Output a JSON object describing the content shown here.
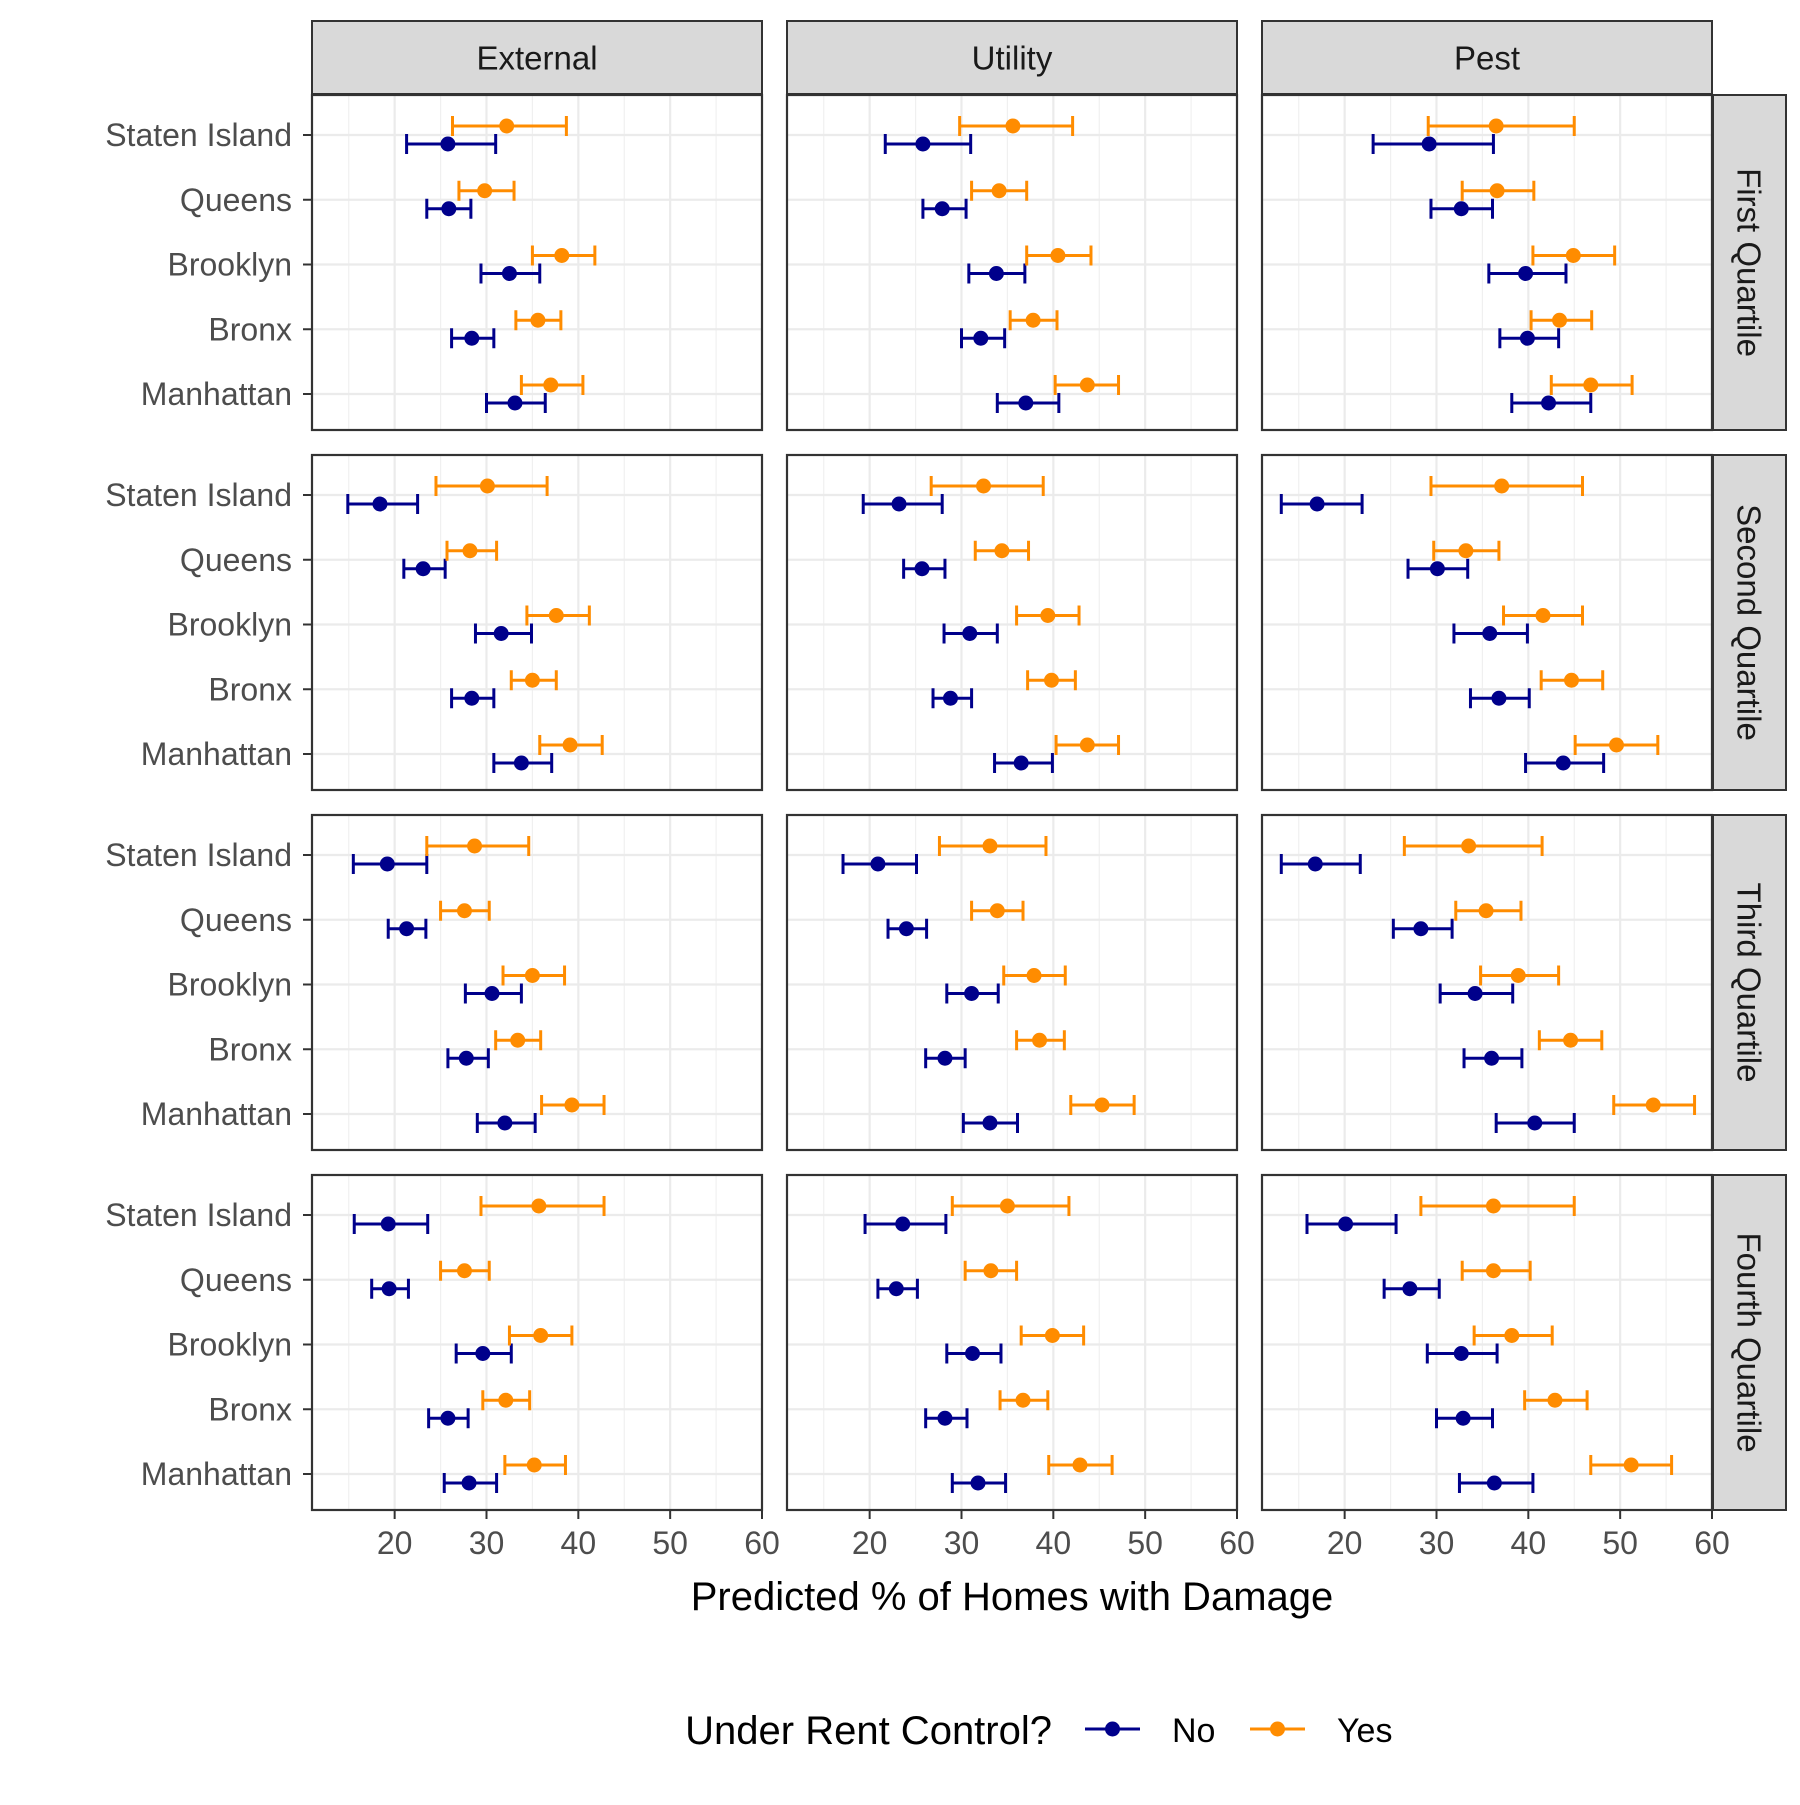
{
  "chart_data": {
    "type": "scatter",
    "subtype": "point-range facet grid",
    "xlabel": "Predicted % of Homes with Damage",
    "x_ticks": [
      20,
      30,
      40,
      50,
      60
    ],
    "xlim": [
      11,
      60
    ],
    "categories": [
      "Staten Island",
      "Queens",
      "Brooklyn",
      "Bronx",
      "Manhattan"
    ],
    "columns": [
      "External",
      "Utility",
      "Pest"
    ],
    "rows": [
      "First Quartile",
      "Second Quartile",
      "Third Quartile",
      "Fourth Quartile"
    ],
    "grid": true,
    "legend": {
      "title": "Under Rent Control?",
      "placement": "bottom",
      "entries": [
        {
          "label": "No",
          "color": "#00008B"
        },
        {
          "label": "Yes",
          "color": "#FF8C00"
        }
      ]
    },
    "series": [
      {
        "name": "No",
        "color": "#00008B",
        "panels": [
          [
            [
              [
                25.8,
                21.3,
                31.0
              ],
              [
                25.9,
                23.5,
                28.3
              ],
              [
                32.5,
                29.4,
                35.8
              ],
              [
                28.4,
                26.2,
                30.8
              ],
              [
                33.1,
                30.0,
                36.4
              ]
            ],
            [
              [
                25.8,
                21.7,
                31.0
              ],
              [
                27.9,
                25.8,
                30.5
              ],
              [
                33.8,
                30.8,
                36.9
              ],
              [
                32.1,
                30.0,
                34.7
              ],
              [
                37.0,
                33.9,
                40.6
              ]
            ],
            [
              [
                29.2,
                23.1,
                36.2
              ],
              [
                32.7,
                29.4,
                36.1
              ],
              [
                39.7,
                35.7,
                44.1
              ],
              [
                39.9,
                36.9,
                43.3
              ],
              [
                42.2,
                38.2,
                46.8
              ]
            ]
          ],
          [
            [
              [
                18.4,
                14.9,
                22.5
              ],
              [
                23.1,
                21.0,
                25.5
              ],
              [
                31.6,
                28.8,
                34.9
              ],
              [
                28.4,
                26.2,
                30.8
              ],
              [
                33.8,
                30.8,
                37.1
              ]
            ],
            [
              [
                23.2,
                19.3,
                27.9
              ],
              [
                25.7,
                23.7,
                28.2
              ],
              [
                30.9,
                28.1,
                33.9
              ],
              [
                28.8,
                26.9,
                31.1
              ],
              [
                36.5,
                33.6,
                39.9
              ]
            ],
            [
              [
                17.0,
                13.1,
                21.9
              ],
              [
                30.1,
                26.9,
                33.4
              ],
              [
                35.8,
                31.9,
                39.9
              ],
              [
                36.8,
                33.7,
                40.1
              ],
              [
                43.8,
                39.7,
                48.2
              ]
            ]
          ],
          [
            [
              [
                19.2,
                15.5,
                23.5
              ],
              [
                21.3,
                19.3,
                23.4
              ],
              [
                30.6,
                27.7,
                33.8
              ],
              [
                27.8,
                25.8,
                30.2
              ],
              [
                32.0,
                29.0,
                35.3
              ]
            ],
            [
              [
                20.9,
                17.1,
                25.1
              ],
              [
                24.0,
                22.0,
                26.2
              ],
              [
                31.1,
                28.4,
                34.0
              ],
              [
                28.2,
                26.1,
                30.4
              ],
              [
                33.1,
                30.2,
                36.1
              ]
            ],
            [
              [
                16.8,
                13.1,
                21.7
              ],
              [
                28.3,
                25.3,
                31.7
              ],
              [
                34.2,
                30.4,
                38.3
              ],
              [
                36.0,
                33.0,
                39.3
              ],
              [
                40.7,
                36.5,
                45.0
              ]
            ]
          ],
          [
            [
              [
                19.3,
                15.6,
                23.6
              ],
              [
                19.4,
                17.5,
                21.5
              ],
              [
                29.6,
                26.7,
                32.7
              ],
              [
                25.8,
                23.7,
                28.0
              ],
              [
                28.1,
                25.4,
                31.1
              ]
            ],
            [
              [
                23.6,
                19.5,
                28.3
              ],
              [
                22.9,
                20.9,
                25.2
              ],
              [
                31.2,
                28.4,
                34.3
              ],
              [
                28.2,
                26.1,
                30.6
              ],
              [
                31.8,
                29.0,
                34.8
              ]
            ],
            [
              [
                20.1,
                15.9,
                25.6
              ],
              [
                27.1,
                24.3,
                30.3
              ],
              [
                32.7,
                29.0,
                36.6
              ],
              [
                32.9,
                30.0,
                36.1
              ],
              [
                36.3,
                32.5,
                40.5
              ]
            ]
          ]
        ]
      },
      {
        "name": "Yes",
        "color": "#FF8C00",
        "panels": [
          [
            [
              [
                32.2,
                26.3,
                38.7
              ],
              [
                29.8,
                27.0,
                33.0
              ],
              [
                38.2,
                35.0,
                41.8
              ],
              [
                35.6,
                33.2,
                38.1
              ],
              [
                37.0,
                33.8,
                40.5
              ]
            ],
            [
              [
                35.6,
                29.8,
                42.1
              ],
              [
                34.1,
                31.1,
                37.1
              ],
              [
                40.5,
                37.1,
                44.1
              ],
              [
                37.8,
                35.3,
                40.4
              ],
              [
                43.7,
                40.2,
                47.1
              ]
            ],
            [
              [
                36.5,
                29.1,
                45.0
              ],
              [
                36.6,
                32.8,
                40.6
              ],
              [
                44.9,
                40.5,
                49.4
              ],
              [
                43.4,
                40.3,
                46.9
              ],
              [
                46.8,
                42.5,
                51.3
              ]
            ]
          ],
          [
            [
              [
                30.1,
                24.5,
                36.6
              ],
              [
                28.2,
                25.7,
                31.1
              ],
              [
                37.6,
                34.4,
                41.2
              ],
              [
                35.0,
                32.7,
                37.6
              ],
              [
                39.1,
                35.8,
                42.6
              ]
            ],
            [
              [
                32.4,
                26.7,
                38.9
              ],
              [
                34.4,
                31.5,
                37.3
              ],
              [
                39.4,
                36.0,
                42.8
              ],
              [
                39.8,
                37.2,
                42.4
              ],
              [
                43.7,
                40.3,
                47.1
              ]
            ],
            [
              [
                37.1,
                29.4,
                45.9
              ],
              [
                33.2,
                29.7,
                36.8
              ],
              [
                41.6,
                37.3,
                45.9
              ],
              [
                44.7,
                41.4,
                48.1
              ],
              [
                49.6,
                45.1,
                54.1
              ]
            ]
          ],
          [
            [
              [
                28.7,
                23.5,
                34.6
              ],
              [
                27.6,
                25.0,
                30.3
              ],
              [
                35.0,
                31.8,
                38.5
              ],
              [
                33.4,
                31.0,
                35.9
              ],
              [
                39.3,
                36.0,
                42.8
              ]
            ],
            [
              [
                33.1,
                27.6,
                39.2
              ],
              [
                33.9,
                31.1,
                36.7
              ],
              [
                37.9,
                34.6,
                41.3
              ],
              [
                38.5,
                36.0,
                41.2
              ],
              [
                45.3,
                41.9,
                48.8
              ]
            ],
            [
              [
                33.5,
                26.5,
                41.5
              ],
              [
                35.4,
                32.1,
                39.2
              ],
              [
                38.9,
                34.8,
                43.3
              ],
              [
                44.6,
                41.2,
                48.0
              ],
              [
                53.6,
                49.3,
                58.1
              ]
            ]
          ],
          [
            [
              [
                35.7,
                29.4,
                42.8
              ],
              [
                27.6,
                25.0,
                30.3
              ],
              [
                35.9,
                32.5,
                39.3
              ],
              [
                32.1,
                29.6,
                34.7
              ],
              [
                35.2,
                32.0,
                38.6
              ]
            ],
            [
              [
                35.0,
                29.0,
                41.7
              ],
              [
                33.2,
                30.4,
                36.0
              ],
              [
                39.9,
                36.5,
                43.3
              ],
              [
                36.7,
                34.2,
                39.4
              ],
              [
                42.9,
                39.5,
                46.4
              ]
            ],
            [
              [
                36.2,
                28.3,
                45.0
              ],
              [
                36.2,
                32.8,
                40.2
              ],
              [
                38.2,
                34.1,
                42.6
              ],
              [
                42.9,
                39.6,
                46.4
              ],
              [
                51.2,
                46.8,
                55.6
              ]
            ]
          ]
        ]
      }
    ]
  }
}
